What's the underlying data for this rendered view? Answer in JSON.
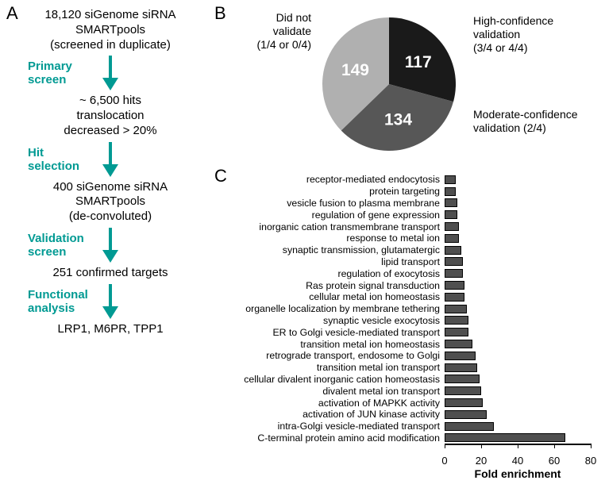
{
  "panels": {
    "A": "A",
    "B": "B",
    "C": "C"
  },
  "flow": {
    "step1": {
      "l1": "18,120 siGenome siRNA",
      "l2": "SMARTpools",
      "l3": "(screened in duplicate)"
    },
    "arrow1_label": {
      "l1": "Primary",
      "l2": "screen"
    },
    "step2": {
      "l1": "~ 6,500 hits",
      "l2": "translocation",
      "l3": "decreased > 20%"
    },
    "arrow2_label": {
      "l1": "Hit",
      "l2": "selection"
    },
    "step3": {
      "l1": "400 siGenome siRNA",
      "l2": "SMARTpools",
      "l3": "(de-convoluted)"
    },
    "arrow3_label": {
      "l1": "Validation",
      "l2": "screen"
    },
    "step4": {
      "l1": "251 confirmed targets"
    },
    "arrow4_label": {
      "l1": "Functional",
      "l2": "analysis"
    },
    "step5": {
      "l1": "LRP1, M6PR, TPP1"
    },
    "accent_color": "#009a93"
  },
  "pie": {
    "radius": 84,
    "slices": [
      {
        "value": 117,
        "color": "#1a1a1a",
        "count_color": "#ffffff"
      },
      {
        "value": 134,
        "color": "#575757",
        "count_color": "#ffffff"
      },
      {
        "value": 149,
        "color": "#b0b0b0",
        "count_color": "#ffffff"
      }
    ],
    "labels": {
      "high": {
        "l1": "High-confidence",
        "l2": "validation",
        "l3": "(3/4 or 4/4)"
      },
      "mod": {
        "l1": "Moderate-confidence",
        "l2": "validation (2/4)"
      },
      "not": {
        "l1": "Did not",
        "l2": "validate",
        "l3": "(1/4 or 0/4)"
      }
    }
  },
  "bars": {
    "x_title": "Fold enrichment",
    "x_max": 80,
    "x_ticks": [
      0,
      20,
      40,
      60,
      80
    ],
    "bar_color": "#4f4f4f",
    "categories": [
      {
        "name": "receptor-mediated endocytosis",
        "value": 6
      },
      {
        "name": "protein targeting",
        "value": 6
      },
      {
        "name": "vesicle fusion to plasma membrane",
        "value": 7
      },
      {
        "name": "regulation of gene expression",
        "value": 7
      },
      {
        "name": "inorganic cation transmembrane transport",
        "value": 8
      },
      {
        "name": "response to metal ion",
        "value": 8
      },
      {
        "name": "synaptic transmission, glutamatergic",
        "value": 9
      },
      {
        "name": "lipid transport",
        "value": 10
      },
      {
        "name": "regulation of exocytosis",
        "value": 10
      },
      {
        "name": "Ras protein signal transduction",
        "value": 11
      },
      {
        "name": "cellular metal ion homeostasis",
        "value": 11
      },
      {
        "name": "organelle localization by membrane tethering",
        "value": 12
      },
      {
        "name": "synaptic vesicle exocytosis",
        "value": 13
      },
      {
        "name": "ER to Golgi vesicle-mediated transport",
        "value": 13
      },
      {
        "name": "transition metal ion homeostasis",
        "value": 15
      },
      {
        "name": "retrograde transport, endosome to Golgi",
        "value": 17
      },
      {
        "name": "transition metal ion transport",
        "value": 18
      },
      {
        "name": "cellular divalent inorganic cation homeostasis",
        "value": 19
      },
      {
        "name": "divalent metal ion transport",
        "value": 20
      },
      {
        "name": "activation of MAPKK activity",
        "value": 21
      },
      {
        "name": "activation of JUN kinase activity",
        "value": 23
      },
      {
        "name": "intra-Golgi vesicle-mediated transport",
        "value": 27
      },
      {
        "name": "C-terminal protein amino acid modification",
        "value": 66
      }
    ]
  }
}
